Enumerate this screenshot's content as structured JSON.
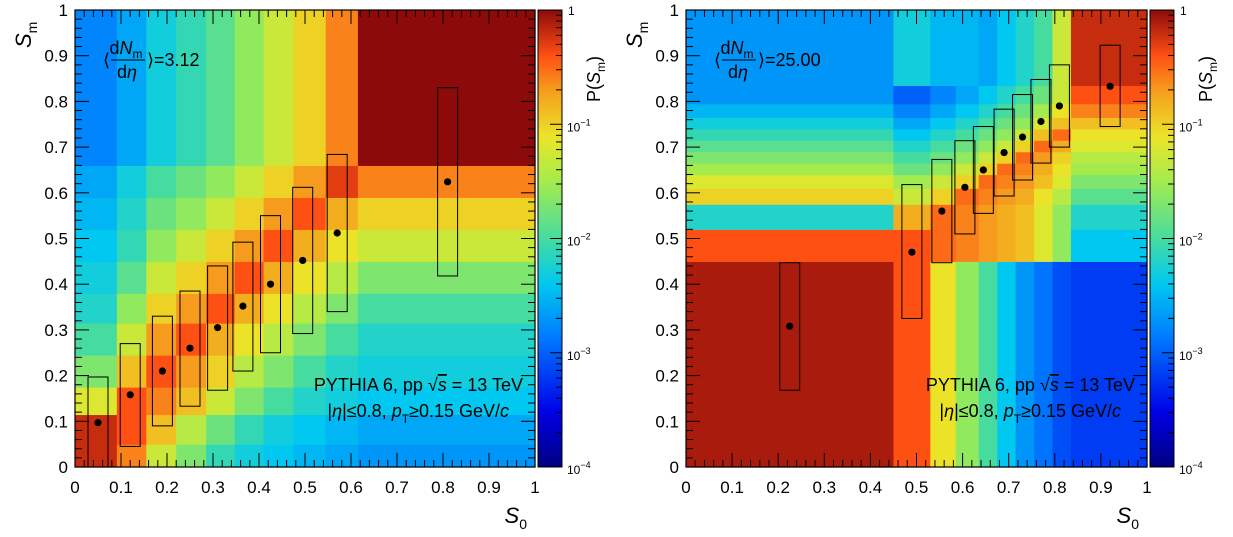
{
  "chart_data": [
    {
      "type": "heatmap",
      "xlabel": "S0",
      "ylabel": "Sm",
      "xlim": [
        0,
        1
      ],
      "ylim": [
        0,
        1
      ],
      "x_ticks": [
        "0",
        "0.1",
        "0.2",
        "0.3",
        "0.4",
        "0.5",
        "0.6",
        "0.7",
        "0.8",
        "0.9",
        "1"
      ],
      "y_ticks": [
        "0",
        "0.1",
        "0.2",
        "0.3",
        "0.4",
        "0.5",
        "0.6",
        "0.7",
        "0.8",
        "0.9",
        "1"
      ],
      "colorbar": {
        "label": "P(Sm)",
        "scale": "log",
        "range": [
          0.0001,
          1
        ],
        "ticks": [
          "1",
          "10^-1",
          "10^-2",
          "10^-3",
          "10^-4"
        ]
      },
      "multiplicity_label": "⟨dNm/dη⟩=3.12",
      "text_line1": "PYTHIA 6, pp √s = 13 TeV",
      "text_line2": "|η|≤0.8, pT≥0.15 GeV/c",
      "x_bins": [
        0,
        0.091,
        0.155,
        0.22,
        0.285,
        0.347,
        0.41,
        0.475,
        0.545,
        0.615,
        1.0
      ],
      "y_bins": [
        0,
        0.05,
        0.115,
        0.175,
        0.245,
        0.315,
        0.38,
        0.45,
        0.52,
        0.59,
        0.66,
        1.0
      ],
      "z_log10": [
        [
          -0.2,
          -0.6,
          -1.3,
          -1.7,
          -2.1,
          -2.3,
          -2.4,
          -2.5,
          -2.6,
          -2.7
        ],
        [
          -0.2,
          -0.4,
          -0.9,
          -1.4,
          -1.8,
          -2.1,
          -2.3,
          -2.4,
          -2.5,
          -2.6
        ],
        [
          -1.2,
          -0.4,
          -0.6,
          -0.9,
          -1.3,
          -1.7,
          -2.0,
          -2.2,
          -2.3,
          -2.4
        ],
        [
          -1.7,
          -0.9,
          -0.4,
          -0.7,
          -1.0,
          -1.4,
          -1.7,
          -2.0,
          -2.2,
          -2.3
        ],
        [
          -2.0,
          -1.3,
          -0.7,
          -0.4,
          -0.8,
          -1.1,
          -1.4,
          -1.7,
          -2.0,
          -2.2
        ],
        [
          -2.2,
          -1.6,
          -1.0,
          -0.7,
          -0.4,
          -0.8,
          -1.1,
          -1.4,
          -1.7,
          -2.0
        ],
        [
          -2.3,
          -1.9,
          -1.3,
          -1.0,
          -0.7,
          -0.4,
          -0.8,
          -1.1,
          -1.4,
          -1.7
        ],
        [
          -2.4,
          -2.1,
          -1.6,
          -1.3,
          -1.0,
          -0.7,
          -0.4,
          -0.8,
          -1.1,
          -1.3
        ],
        [
          -2.5,
          -2.2,
          -1.8,
          -1.6,
          -1.3,
          -1.0,
          -0.7,
          -0.4,
          -0.8,
          -1.0
        ],
        [
          -2.6,
          -2.3,
          -2.0,
          -1.8,
          -1.6,
          -1.3,
          -1.0,
          -0.7,
          -0.3,
          -0.6
        ],
        [
          -2.8,
          -2.6,
          -2.3,
          -2.1,
          -1.9,
          -1.6,
          -1.3,
          -1.0,
          -0.6,
          0.0
        ]
      ],
      "points": [
        {
          "x": 0.05,
          "y": 0.097,
          "lo": 0.0,
          "hi": 0.197
        },
        {
          "x": 0.12,
          "y": 0.158,
          "lo": 0.045,
          "hi": 0.27
        },
        {
          "x": 0.19,
          "y": 0.21,
          "lo": 0.09,
          "hi": 0.33
        },
        {
          "x": 0.25,
          "y": 0.26,
          "lo": 0.133,
          "hi": 0.385
        },
        {
          "x": 0.31,
          "y": 0.305,
          "lo": 0.168,
          "hi": 0.44
        },
        {
          "x": 0.365,
          "y": 0.352,
          "lo": 0.21,
          "hi": 0.492
        },
        {
          "x": 0.425,
          "y": 0.4,
          "lo": 0.25,
          "hi": 0.55
        },
        {
          "x": 0.495,
          "y": 0.452,
          "lo": 0.292,
          "hi": 0.612
        },
        {
          "x": 0.57,
          "y": 0.512,
          "lo": 0.34,
          "hi": 0.684
        },
        {
          "x": 0.81,
          "y": 0.624,
          "lo": 0.418,
          "hi": 0.83
        }
      ]
    },
    {
      "type": "heatmap",
      "xlabel": "S0",
      "ylabel": "Sm",
      "xlim": [
        0,
        1
      ],
      "ylim": [
        0,
        1
      ],
      "x_ticks": [
        "0",
        "0.1",
        "0.2",
        "0.3",
        "0.4",
        "0.5",
        "0.6",
        "0.7",
        "0.8",
        "0.9",
        "1"
      ],
      "y_ticks": [
        "0",
        "0.1",
        "0.2",
        "0.3",
        "0.4",
        "0.5",
        "0.6",
        "0.7",
        "0.8",
        "0.9",
        "1"
      ],
      "colorbar": {
        "label": "P(Sm)",
        "scale": "log",
        "range": [
          0.0001,
          1
        ],
        "ticks": [
          "1",
          "10^-1",
          "10^-2",
          "10^-3",
          "10^-4"
        ]
      },
      "multiplicity_label": "⟨dNm/dη⟩=25.00",
      "text_line1": "PYTHIA 6, pp √s = 13 TeV",
      "text_line2": "|η|≤0.8, pT≥0.15 GeV/c",
      "x_bins": [
        0,
        0.45,
        0.53,
        0.585,
        0.635,
        0.675,
        0.715,
        0.755,
        0.795,
        0.835,
        1.0
      ],
      "y_bins": [
        0,
        0.45,
        0.52,
        0.575,
        0.61,
        0.64,
        0.665,
        0.69,
        0.715,
        0.74,
        0.765,
        0.795,
        0.835,
        1.0
      ],
      "z_log10": [
        [
          -0.1,
          -0.4,
          -1.1,
          -1.6,
          -2.0,
          -2.4,
          -2.7,
          -2.9,
          -3.1,
          -3.2
        ],
        [
          -0.4,
          -0.4,
          -0.5,
          -0.6,
          -0.7,
          -0.8,
          -0.9,
          -1.2,
          -1.6,
          -2.4
        ],
        [
          -2.2,
          -0.8,
          -0.5,
          -0.6,
          -0.7,
          -0.8,
          -0.9,
          -1.2,
          -1.6,
          -2.2
        ],
        [
          -1.0,
          -1.3,
          -1.0,
          -0.5,
          -0.6,
          -0.7,
          -0.8,
          -1.1,
          -1.4,
          -1.9
        ],
        [
          -1.2,
          -1.5,
          -1.3,
          -1.0,
          -0.5,
          -0.6,
          -0.7,
          -0.9,
          -1.2,
          -1.7
        ],
        [
          -1.5,
          -1.8,
          -1.6,
          -1.3,
          -1.0,
          -0.5,
          -0.6,
          -0.8,
          -1.1,
          -1.5
        ],
        [
          -1.7,
          -2.0,
          -1.8,
          -1.6,
          -1.3,
          -1.0,
          -0.5,
          -0.7,
          -1.0,
          -1.4
        ],
        [
          -1.9,
          -2.2,
          -2.0,
          -1.8,
          -1.6,
          -1.3,
          -1.0,
          -0.5,
          -0.8,
          -1.2
        ],
        [
          -2.1,
          -2.4,
          -2.2,
          -2.0,
          -1.8,
          -1.6,
          -1.3,
          -0.9,
          -0.5,
          -1.1
        ],
        [
          -2.3,
          -2.6,
          -2.4,
          -2.2,
          -2.0,
          -1.8,
          -1.6,
          -1.2,
          -0.9,
          -0.9
        ],
        [
          -2.5,
          -2.8,
          -2.6,
          -2.4,
          -2.2,
          -2.0,
          -1.8,
          -1.5,
          -1.1,
          -0.6
        ],
        [
          -2.7,
          -3.0,
          -2.8,
          -2.6,
          -2.4,
          -2.2,
          -2.0,
          -1.8,
          -1.3,
          -0.4
        ],
        [
          -2.7,
          -2.3,
          -2.5,
          -2.5,
          -2.6,
          -2.4,
          -2.2,
          -2.0,
          -1.3,
          -0.2
        ]
      ],
      "points": [
        {
          "x": 0.225,
          "y": 0.308,
          "lo": 0.168,
          "hi": 0.447
        },
        {
          "x": 0.49,
          "y": 0.47,
          "lo": 0.325,
          "hi": 0.618
        },
        {
          "x": 0.555,
          "y": 0.56,
          "lo": 0.447,
          "hi": 0.673
        },
        {
          "x": 0.605,
          "y": 0.612,
          "lo": 0.51,
          "hi": 0.714
        },
        {
          "x": 0.645,
          "y": 0.65,
          "lo": 0.555,
          "hi": 0.745
        },
        {
          "x": 0.69,
          "y": 0.688,
          "lo": 0.593,
          "hi": 0.783
        },
        {
          "x": 0.73,
          "y": 0.722,
          "lo": 0.628,
          "hi": 0.815
        },
        {
          "x": 0.77,
          "y": 0.756,
          "lo": 0.665,
          "hi": 0.848
        },
        {
          "x": 0.81,
          "y": 0.79,
          "lo": 0.7,
          "hi": 0.88
        },
        {
          "x": 0.92,
          "y": 0.833,
          "lo": 0.745,
          "hi": 0.923
        }
      ]
    }
  ]
}
